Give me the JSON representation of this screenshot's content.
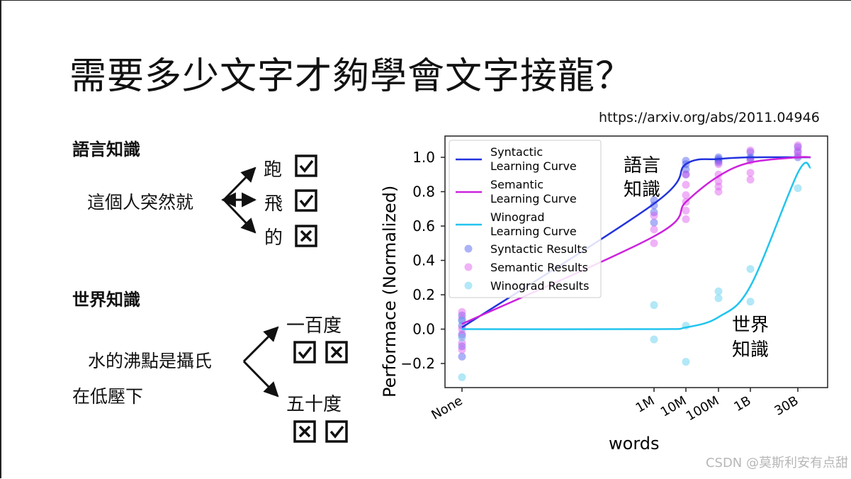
{
  "slide": {
    "title": "需要多少文字才夠學會文字接龍？",
    "source": "https://arxiv.org/abs/2011.04946",
    "credit": "CSDN @莫斯利安有点甜"
  },
  "language_knowledge": {
    "heading": "語言知識",
    "sentence": "這個人突然就",
    "options": [
      {
        "word": "跑",
        "mark": "check"
      },
      {
        "word": "飛",
        "mark": "check"
      },
      {
        "word": "的",
        "mark": "cross"
      }
    ]
  },
  "world_knowledge": {
    "heading": "世界知識",
    "sentence_line1": "水的沸點是攝氏",
    "sentence_line2": "在低壓下",
    "options": [
      {
        "word": "一百度",
        "marks": [
          "check",
          "cross"
        ]
      },
      {
        "word": "五十度",
        "marks": [
          "cross",
          "check"
        ]
      }
    ]
  },
  "chart_data": {
    "type": "scatter",
    "xlabel": "words",
    "ylabel": "Performace (Normalized)",
    "categories": [
      "None",
      "1M",
      "10M",
      "100M",
      "1B",
      "30B"
    ],
    "ylim": [
      -0.35,
      1.1
    ],
    "yticks": [
      "−0.2",
      "0.0",
      "0.2",
      "0.4",
      "0.6",
      "0.8",
      "1.0"
    ],
    "ytick_values": [
      -0.2,
      0.0,
      0.2,
      0.4,
      0.6,
      0.8,
      1.0
    ],
    "legend_placement": "top-left",
    "annotations": [
      {
        "text": [
          "語言",
          "知識"
        ],
        "near": "Syntactic curve"
      },
      {
        "text": [
          "世界",
          "知識"
        ],
        "near": "Winograd curve"
      }
    ],
    "series": [
      {
        "name": "Syntactic Learning Curve",
        "kind": "curve",
        "color": "#2233dd",
        "x": [
          "None",
          "1M",
          "10M",
          "100M",
          "1B",
          "30B"
        ],
        "y": [
          0.01,
          0.73,
          0.96,
          0.99,
          1.0,
          1.0
        ]
      },
      {
        "name": "Semantic Learning Curve",
        "kind": "curve",
        "color": "#cc22dd",
        "x": [
          "None",
          "1M",
          "10M",
          "100M",
          "1B",
          "30B"
        ],
        "y": [
          0.03,
          0.54,
          0.74,
          0.89,
          0.97,
          1.0
        ]
      },
      {
        "name": "Winograd Learning Curve",
        "kind": "curve",
        "color": "#22c4ee",
        "x": [
          "None",
          "1M",
          "10M",
          "100M",
          "1B",
          "30B"
        ],
        "y": [
          0.0,
          0.0,
          0.01,
          0.07,
          0.25,
          0.91
        ]
      },
      {
        "name": "Syntactic Results",
        "kind": "points",
        "color": "#4455ee",
        "x": [
          "None",
          "None",
          "None",
          "None",
          "None",
          "None",
          "1M",
          "1M",
          "1M",
          "1M",
          "10M",
          "10M",
          "10M",
          "10M",
          "100M",
          "100M",
          "100M",
          "100M",
          "1B",
          "1B",
          "1B",
          "30B",
          "30B",
          "30B"
        ],
        "y": [
          0.08,
          0.05,
          0.02,
          -0.03,
          -0.1,
          -0.16,
          0.75,
          0.72,
          0.68,
          0.62,
          0.98,
          0.96,
          0.93,
          0.9,
          1.0,
          0.99,
          0.98,
          0.97,
          1.03,
          1.0,
          0.99,
          1.06,
          1.03,
          1.0
        ]
      },
      {
        "name": "Semantic Results",
        "kind": "points",
        "color": "#dd55ee",
        "x": [
          "None",
          "None",
          "None",
          "None",
          "None",
          "None",
          "1M",
          "1M",
          "1M",
          "10M",
          "10M",
          "10M",
          "10M",
          "10M",
          "10M",
          "100M",
          "100M",
          "100M",
          "100M",
          "100M",
          "1B",
          "1B",
          "1B",
          "1B",
          "30B",
          "30B",
          "30B"
        ],
        "y": [
          0.1,
          0.06,
          0.0,
          -0.04,
          -0.08,
          -0.12,
          0.66,
          0.58,
          0.5,
          0.9,
          0.84,
          0.78,
          0.74,
          0.69,
          0.64,
          0.96,
          0.9,
          0.86,
          0.83,
          0.8,
          1.04,
          0.98,
          0.91,
          0.87,
          1.07,
          1.04,
          1.01
        ]
      },
      {
        "name": "Winograd Results",
        "kind": "points",
        "color": "#55ccee",
        "x": [
          "None",
          "None",
          "None",
          "1M",
          "1M",
          "10M",
          "10M",
          "100M",
          "100M",
          "1B",
          "1B",
          "30B"
        ],
        "y": [
          0.05,
          -0.05,
          -0.28,
          0.14,
          -0.06,
          0.02,
          -0.19,
          0.22,
          0.18,
          0.35,
          0.16,
          0.82
        ]
      }
    ]
  }
}
